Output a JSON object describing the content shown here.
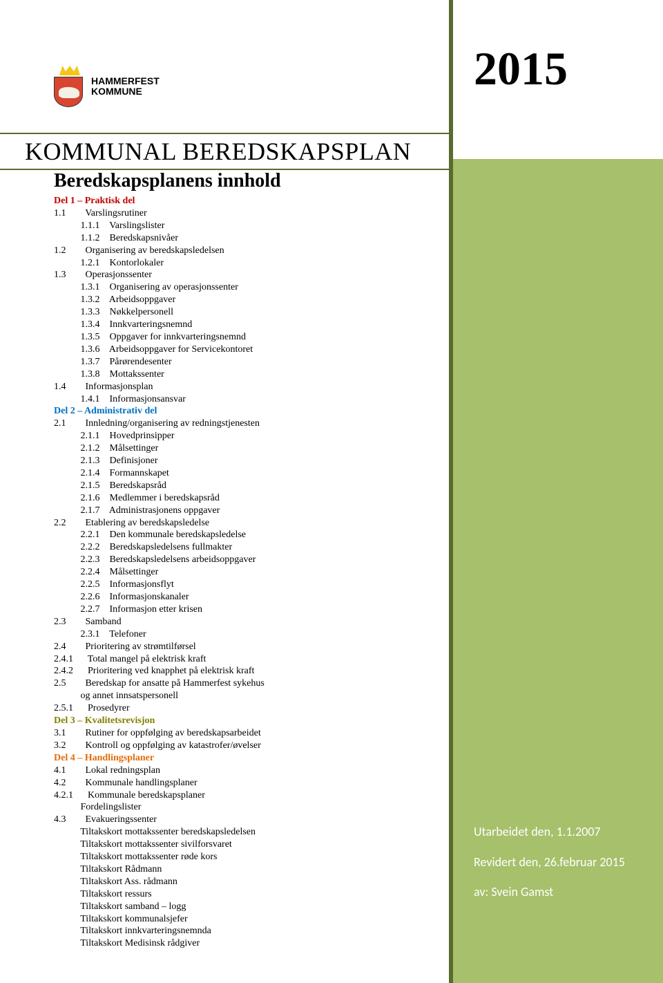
{
  "year": "2015",
  "logo": {
    "line1": "HAMMERFEST",
    "line2": "KOMMUNE",
    "crest_bg": "#d84530",
    "crown_color": "#f5c518",
    "bear_color": "#f5f0e6"
  },
  "title": "KOMMUNAL BEREDSKAPSPLAN",
  "subtitle": "Beredskapsplanens innhold",
  "sidebar": {
    "band_color": "#a6c06b",
    "border_color": "#5a6b2f",
    "line1": "Utarbeidet den, 1.1.2007",
    "line2": "Revidert den, 26.februar 2015",
    "line3": "av: Svein Gamst"
  },
  "toc": [
    {
      "type": "head",
      "cls": "red",
      "text": "Del 1 – Praktisk del"
    },
    {
      "n": "1.1",
      "t": "Varslingsrutiner",
      "i": 0
    },
    {
      "n": "1.1.1",
      "t": "Varslingslister",
      "i": 1
    },
    {
      "n": "1.1.2",
      "t": "Beredskapsnivåer",
      "i": 1
    },
    {
      "n": "1.2",
      "t": "Organisering av beredskapsledelsen",
      "i": 0
    },
    {
      "n": "1.2.1",
      "t": "Kontorlokaler",
      "i": 1
    },
    {
      "n": "1.3",
      "t": "Operasjonssenter",
      "i": 0
    },
    {
      "n": "1.3.1",
      "t": "Organisering av operasjonssenter",
      "i": 1
    },
    {
      "n": "1.3.2",
      "t": "Arbeidsoppgaver",
      "i": 1
    },
    {
      "n": "1.3.3",
      "t": "Nøkkelpersonell",
      "i": 1
    },
    {
      "n": "1.3.4",
      "t": "Innkvarteringsnemnd",
      "i": 1
    },
    {
      "n": "1.3.5",
      "t": "Oppgaver for innkvarteringsnemnd",
      "i": 1
    },
    {
      "n": "1.3.6",
      "t": "Arbeidsoppgaver for Servicekontoret",
      "i": 1
    },
    {
      "n": "1.3.7",
      "t": "Pårørendesenter",
      "i": 1
    },
    {
      "n": "1.3.8",
      "t": "Mottakssenter",
      "i": 1
    },
    {
      "n": "1.4",
      "t": "Informasjonsplan",
      "i": 0
    },
    {
      "n": "1.4.1",
      "t": "Informasjonsansvar",
      "i": 1
    },
    {
      "type": "head",
      "cls": "blue",
      "text": "Del 2 – Administrativ del"
    },
    {
      "n": "2.1",
      "t": "Innledning/organisering av redningstjenesten",
      "i": 0
    },
    {
      "n": "2.1.1",
      "t": "Hovedprinsipper",
      "i": 1
    },
    {
      "n": "2.1.2",
      "t": "Målsettinger",
      "i": 1
    },
    {
      "n": "2.1.3",
      "t": "Definisjoner",
      "i": 1
    },
    {
      "n": "2.1.4",
      "t": "Formannskapet",
      "i": 1
    },
    {
      "n": "2.1.5",
      "t": "Beredskapsråd",
      "i": 1
    },
    {
      "n": "2.1.6",
      "t": "Medlemmer i beredskapsråd",
      "i": 1
    },
    {
      "n": "2.1.7",
      "t": "Administrasjonens oppgaver",
      "i": 1
    },
    {
      "n": "2.2",
      "t": "Etablering av beredskapsledelse",
      "i": 0
    },
    {
      "n": "2.2.1",
      "t": "Den kommunale beredskapsledelse",
      "i": 1
    },
    {
      "n": "2.2.2",
      "t": "Beredskapsledelsens fullmakter",
      "i": 1
    },
    {
      "n": "2.2.3",
      "t": "Beredskapsledelsens arbeidsoppgaver",
      "i": 1
    },
    {
      "n": "2.2.4",
      "t": "Målsettinger",
      "i": 1
    },
    {
      "n": "2.2.5",
      "t": "Informasjonsflyt",
      "i": 1
    },
    {
      "n": "2.2.6",
      "t": "Informasjonskanaler",
      "i": 1
    },
    {
      "n": "2.2.7",
      "t": "Informasjon etter krisen",
      "i": 1
    },
    {
      "n": "2.3",
      "t": "Samband",
      "i": 0
    },
    {
      "n": "2.3.1",
      "t": "Telefoner",
      "i": 1
    },
    {
      "n": "2.4",
      "t": "Prioritering av strømtilførsel",
      "i": 0
    },
    {
      "n": "2.4.1",
      "t": "Total mangel på elektrisk kraft",
      "i": 0
    },
    {
      "n": "2.4.2",
      "t": "Prioritering ved knapphet på elektrisk kraft",
      "i": 0
    },
    {
      "n": "2.5",
      "t": "Beredskap for ansatte på Hammerfest sykehus",
      "i": 0
    },
    {
      "n": "",
      "t": "og annet innsatspersonell",
      "i": 0
    },
    {
      "n": "2.5.1",
      "t": "Prosedyrer",
      "i": 0
    },
    {
      "type": "head",
      "cls": "olive",
      "text": "Del 3 – Kvalitetsrevisjon"
    },
    {
      "n": "3.1",
      "t": "Rutiner for oppfølging av beredskapsarbeidet",
      "i": 0
    },
    {
      "n": "3.2",
      "t": "Kontroll og oppfølging av katastrofer/øvelser",
      "i": 0
    },
    {
      "type": "head",
      "cls": "orange",
      "text": "Del 4 – Handlingsplaner"
    },
    {
      "n": "4.1",
      "t": "Lokal redningsplan",
      "i": 0
    },
    {
      "n": "4.2",
      "t": "Kommunale handlingsplaner",
      "i": 0
    },
    {
      "n": "4.2.1",
      "t": "Kommunale beredskapsplaner",
      "i": 0
    },
    {
      "n": "",
      "t": "Fordelingslister",
      "i": 0
    },
    {
      "n": "4.3",
      "t": "Evakueringssenter",
      "i": 0
    },
    {
      "n": "",
      "t": "Tiltakskort mottakssenter beredskapsledelsen",
      "i": 0
    },
    {
      "n": "",
      "t": "Tiltakskort mottakssenter sivilforsvaret",
      "i": 0
    },
    {
      "n": "",
      "t": "Tiltakskort mottakssenter røde kors",
      "i": 0
    },
    {
      "n": "",
      "t": "Tiltakskort Rådmann",
      "i": 0
    },
    {
      "n": "",
      "t": "Tiltakskort Ass. rådmann",
      "i": 0
    },
    {
      "n": "",
      "t": "Tiltakskort ressurs",
      "i": 0
    },
    {
      "n": "",
      "t": "Tiltakskort samband – logg",
      "i": 0
    },
    {
      "n": "",
      "t": "Tiltakskort kommunalsjefer",
      "i": 0
    },
    {
      "n": "",
      "t": "Tiltakskort innkvarteringsnemnda",
      "i": 0
    },
    {
      "n": "",
      "t": "Tiltakskort Medisinsk rådgiver",
      "i": 0
    }
  ],
  "tab": {
    "num_width": 11,
    "base_col": 11,
    "indent_step": 4
  }
}
